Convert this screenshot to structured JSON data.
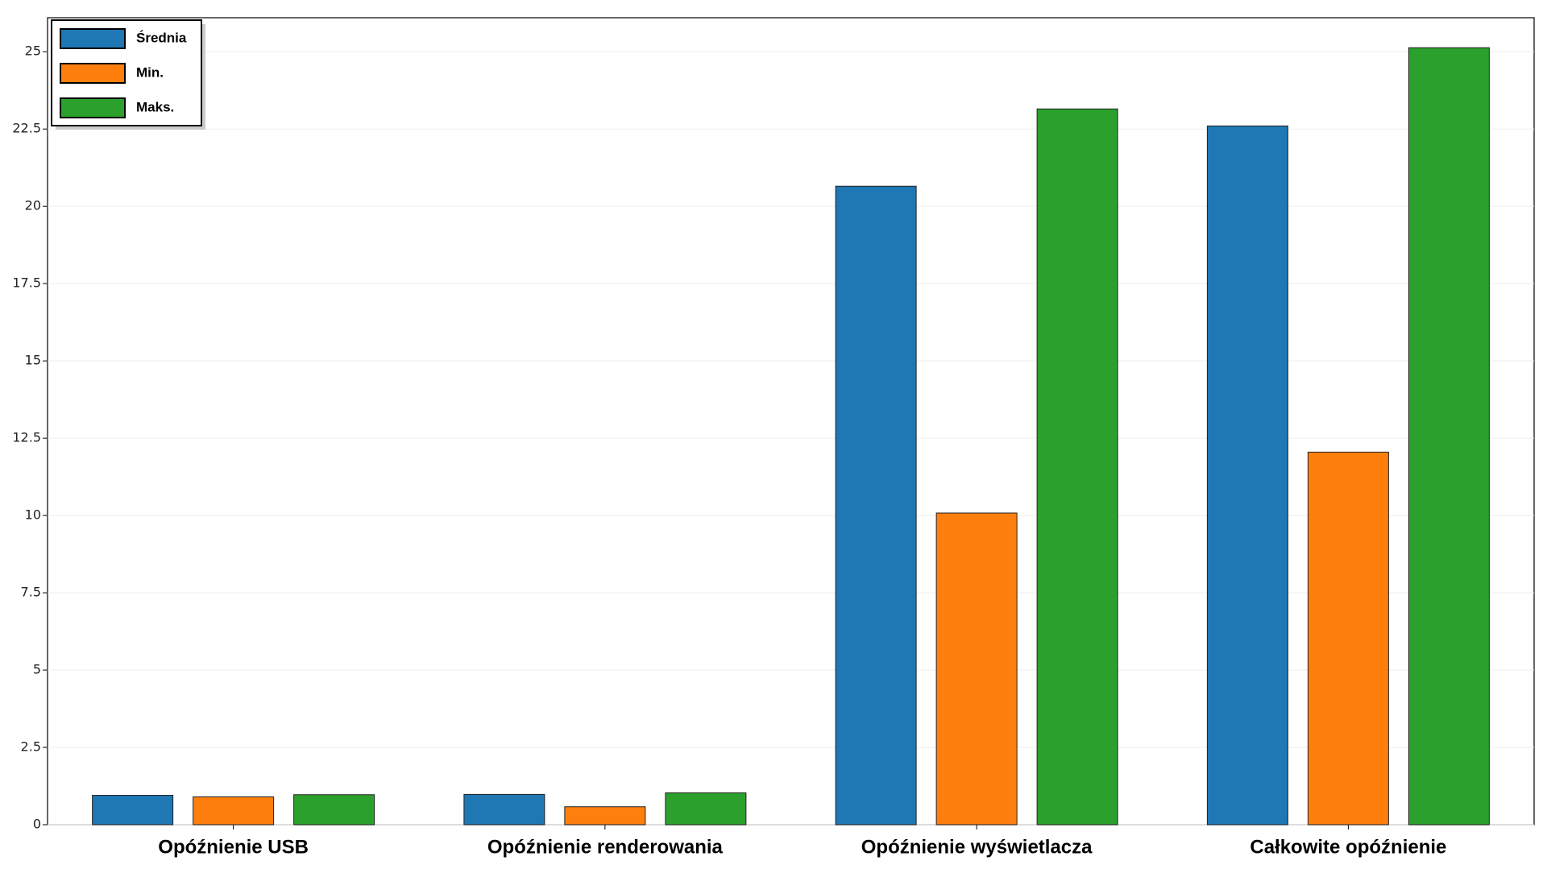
{
  "chart_data": {
    "type": "bar",
    "categories": [
      "Opóźnienie USB",
      "Opóźnienie renderowania",
      "Opóźnienie wyświetlacza",
      "Całkowite opóźnienie"
    ],
    "series": [
      {
        "name": "Średnia",
        "color": "#1f77b4",
        "values": [
          0.95,
          0.98,
          20.65,
          22.6
        ]
      },
      {
        "name": "Min.",
        "color": "#ff7f0e",
        "values": [
          0.9,
          0.58,
          10.08,
          12.05
        ]
      },
      {
        "name": "Maks.",
        "color": "#2ca02c",
        "values": [
          0.97,
          1.03,
          23.15,
          25.13
        ]
      }
    ],
    "ylim": [
      0,
      26.1
    ],
    "yticks": [
      0,
      2.5,
      5,
      7.5,
      10,
      12.5,
      15,
      17.5,
      20,
      22.5,
      25
    ],
    "grid": true,
    "legend": "upper-left"
  }
}
